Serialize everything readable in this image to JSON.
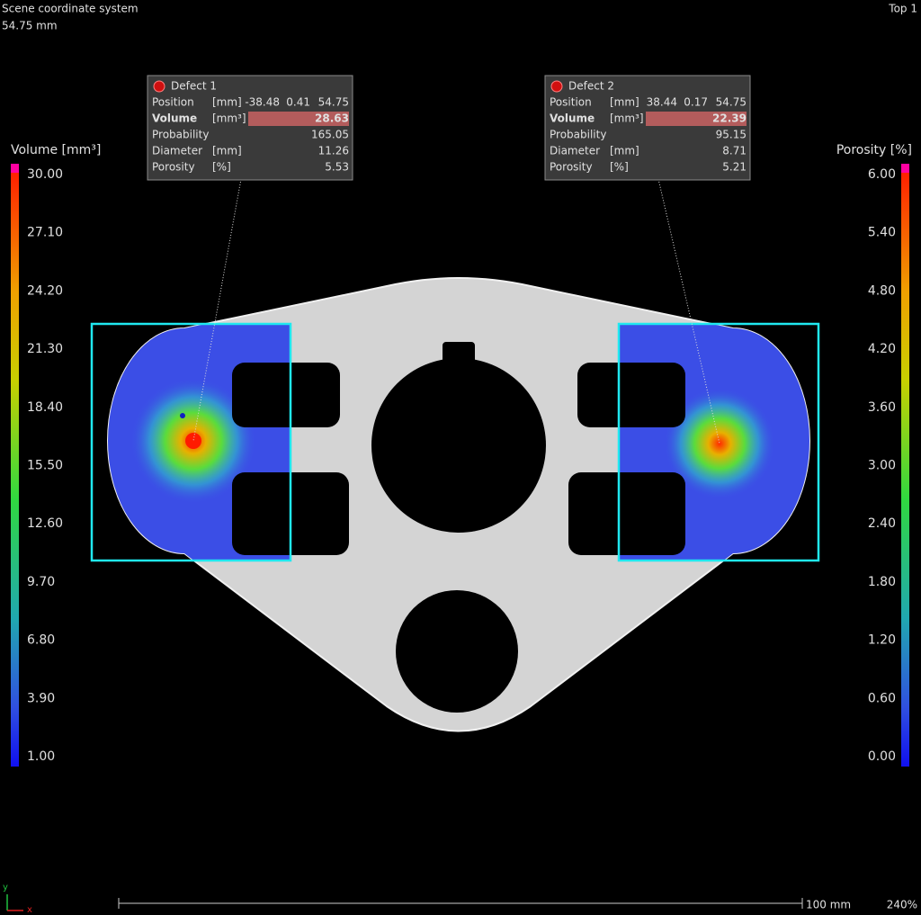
{
  "header": {
    "coordinate_system": "Scene coordinate system",
    "depth": "54.75 mm",
    "view": "Top 1"
  },
  "volume_legend": {
    "title": "Volume [mm³]",
    "ticks": [
      "30.00",
      "27.10",
      "24.20",
      "21.30",
      "18.40",
      "15.50",
      "12.60",
      "9.70",
      "6.80",
      "3.90",
      "1.00"
    ]
  },
  "porosity_legend": {
    "title": "Porosity [%]",
    "ticks": [
      "6.00",
      "5.40",
      "4.80",
      "4.20",
      "3.60",
      "3.00",
      "2.40",
      "1.80",
      "1.20",
      "0.60",
      "0.00"
    ]
  },
  "defects": [
    {
      "title": "Defect 1",
      "rows": [
        {
          "label": "Position",
          "unit": "[mm]",
          "values": [
            "-38.48",
            "0.41",
            "54.75"
          ]
        },
        {
          "label": "Volume",
          "unit": "[mm³]",
          "values": [
            "28.63"
          ]
        },
        {
          "label": "Probability",
          "values": [
            "165.05"
          ]
        },
        {
          "label": "Diameter",
          "unit": "[mm]",
          "values": [
            "11.26"
          ]
        },
        {
          "label": "Porosity",
          "unit": "[%]",
          "values": [
            "5.53"
          ]
        }
      ]
    },
    {
      "title": "Defect 2",
      "rows": [
        {
          "label": "Position",
          "unit": "[mm]",
          "values": [
            "38.44",
            "0.17",
            "54.75"
          ]
        },
        {
          "label": "Volume",
          "unit": "[mm³]",
          "values": [
            "22.39"
          ]
        },
        {
          "label": "Probability",
          "values": [
            "95.15"
          ]
        },
        {
          "label": "Diameter",
          "unit": "[mm]",
          "values": [
            "8.71"
          ]
        },
        {
          "label": "Porosity",
          "unit": "[%]",
          "values": [
            "5.21"
          ]
        }
      ]
    }
  ],
  "footer": {
    "scale": "100 mm",
    "zoom": "240%",
    "axis_y": "y",
    "axis_x": "x"
  }
}
